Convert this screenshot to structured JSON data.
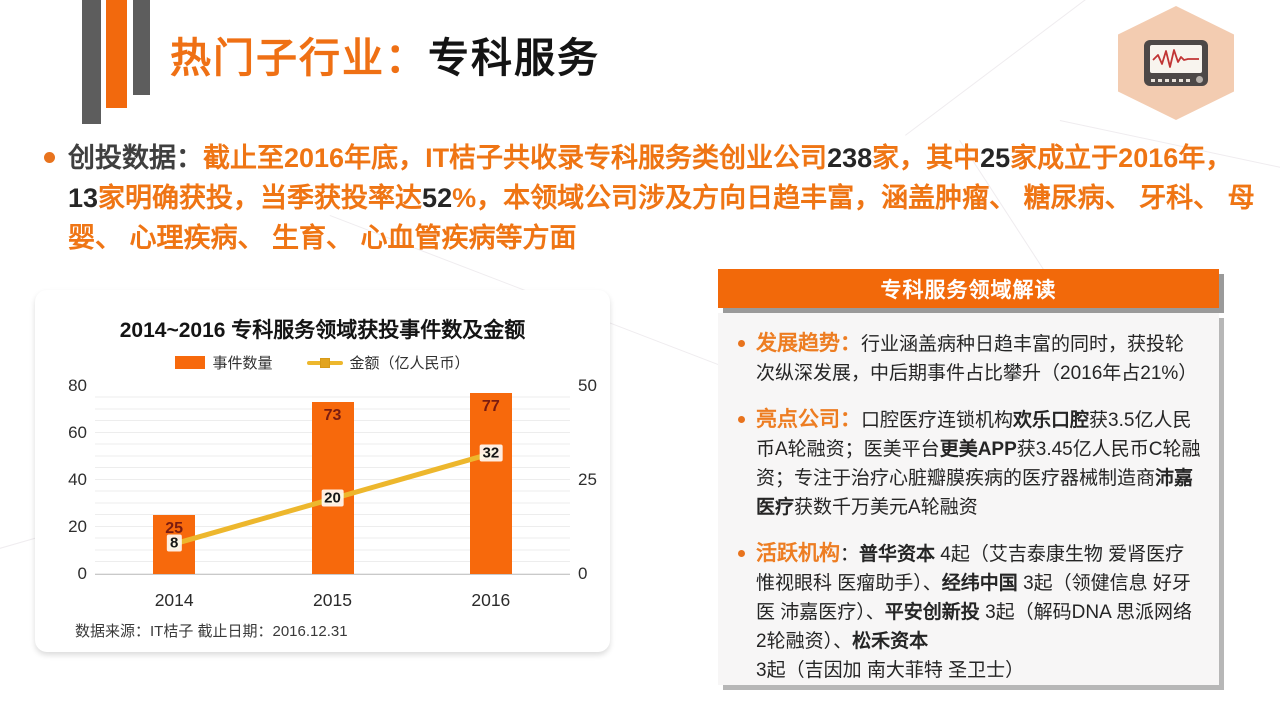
{
  "slide": {
    "title": {
      "orange": "热门子行业：",
      "black": "专科服务"
    },
    "icon": "ecg-monitor",
    "colors": {
      "accent_orange": "#f2690d",
      "text_orange": "#ef7514",
      "gold_line": "#edb72d",
      "bar_value_label": "#7a1c10",
      "deco_gray": "#5d5d5d",
      "hexagon_peach": "#f3ccb1"
    }
  },
  "intro": {
    "label": "创投数据：",
    "segments": [
      {
        "text": "截止至2016年底，IT桔子共收录专科服务类创业公司",
        "style": "orange"
      },
      {
        "text": "238",
        "style": "dark"
      },
      {
        "text": "家，其中",
        "style": "orange"
      },
      {
        "text": "25",
        "style": "dark"
      },
      {
        "text": "家成立于2016年，",
        "style": "orange"
      },
      {
        "text": "13",
        "style": "dark"
      },
      {
        "text": "家明确获投，当季获投率达",
        "style": "orange"
      },
      {
        "text": "52",
        "style": "dark"
      },
      {
        "text": "%，本领域公司涉及方向日趋丰富，涵盖肿瘤、 糖尿病、 牙科、 母婴、 心理疾病、 生育、 心血管疾病等方面",
        "style": "orange"
      }
    ]
  },
  "chart_data": {
    "type": "bar",
    "title": "2014~2016 专科服务领域获投事件数及金额",
    "categories": [
      "2014",
      "2015",
      "2016"
    ],
    "series": [
      {
        "name": "事件数量",
        "type": "bar",
        "values": [
          25,
          73,
          77
        ],
        "axis": "left",
        "color": "#f7690c"
      },
      {
        "name": "金额（亿人民币）",
        "type": "line",
        "values": [
          8,
          20,
          32
        ],
        "axis": "right",
        "color": "#edb72d"
      }
    ],
    "left_axis": {
      "ticks": [
        0,
        20,
        40,
        60,
        80
      ],
      "max": 80
    },
    "right_axis": {
      "ticks": [
        0,
        25,
        50
      ],
      "max": 50
    },
    "grid": "fine-horizontal",
    "legend_position": "top-center",
    "source": "数据来源：IT桔子  截止日期：2016.12.31"
  },
  "panel": {
    "header": "专科服务领域解读",
    "bullets": [
      {
        "label": "发展趋势：",
        "segments": [
          {
            "text": "行业涵盖病种日趋丰富的同时，获投轮次纵深发展，中后期事件占比攀升（2016年占21%）",
            "bold": false
          }
        ]
      },
      {
        "label": "亮点公司：",
        "segments": [
          {
            "text": "口腔医疗连锁机构",
            "bold": false
          },
          {
            "text": "欢乐口腔",
            "bold": true
          },
          {
            "text": "获3.5亿人民币A轮融资；医美平台",
            "bold": false
          },
          {
            "text": "更美APP",
            "bold": true
          },
          {
            "text": "获3.45亿人民币C轮融资；专注于治疗心脏瓣膜疾病的医疗器械制造商",
            "bold": false
          },
          {
            "text": "沛嘉医疗",
            "bold": true
          },
          {
            "text": "获数千万美元A轮融资",
            "bold": false
          }
        ]
      },
      {
        "label": "活跃机构",
        "segments": [
          {
            "text": "：",
            "bold": false
          },
          {
            "text": "普华资本",
            "bold": true
          },
          {
            "text": " 4起（艾吉泰康生物 爱肾医疗 惟视眼科 医瘤助手）、",
            "bold": false
          },
          {
            "text": "经纬中国",
            "bold": true
          },
          {
            "text": " 3起（领健信息 好牙医 沛嘉医疗）、",
            "bold": false
          },
          {
            "text": "平安创新投",
            "bold": true
          },
          {
            "text": " 3起（解码DNA 思派网络2轮融资）、",
            "bold": false
          },
          {
            "text": "松禾资本",
            "bold": true
          },
          {
            "text": " 3起（吉因加 南大菲特 圣卫士）",
            "bold": false
          }
        ]
      }
    ]
  }
}
